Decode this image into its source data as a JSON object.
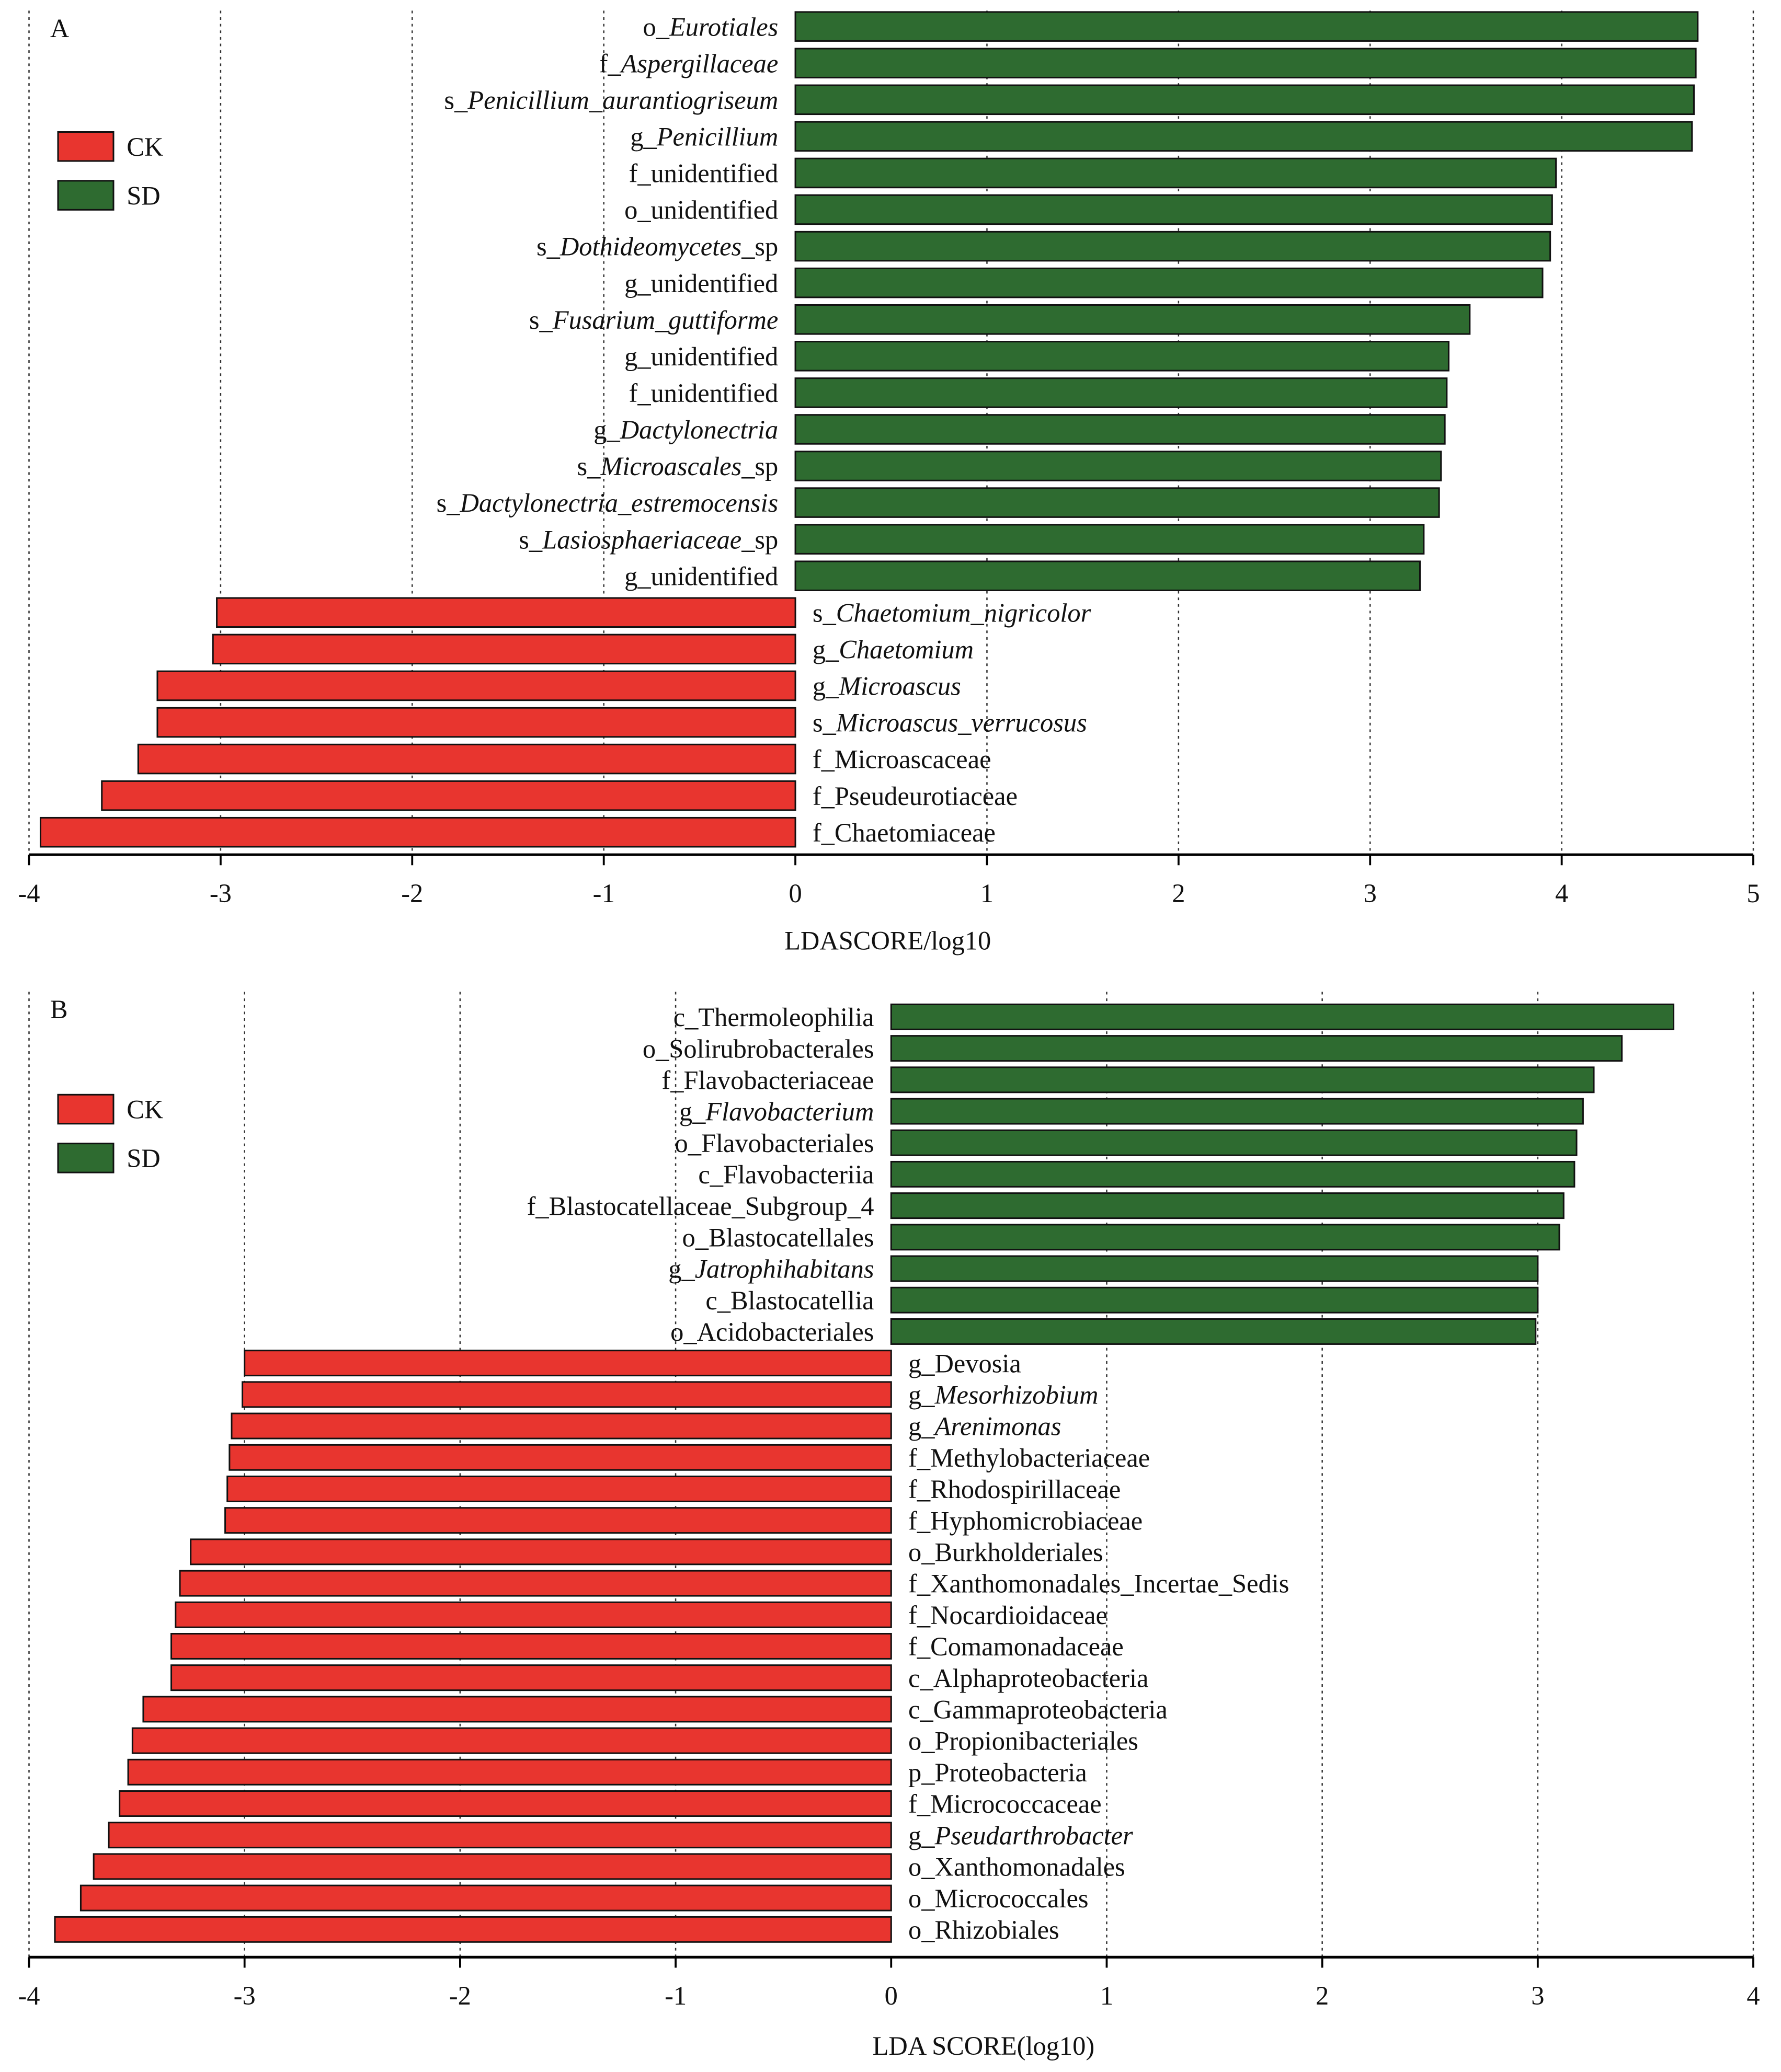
{
  "colors": {
    "CK": "#e8352f",
    "SD": "#2e6b30",
    "bar_stroke": "#111111"
  },
  "chart_data": [
    {
      "type": "bar",
      "orientation": "horizontal",
      "panel_label": "A",
      "xlabel": "LDASCORE/log10",
      "xlim": [
        -4,
        5
      ],
      "xticks": [
        "-4",
        "-3",
        "-2",
        "-1",
        "0",
        "1",
        "2",
        "3",
        "4",
        "5"
      ],
      "grid": "vertical dotted",
      "legend": {
        "placement": "top-left",
        "entries": [
          "CK",
          "SD"
        ]
      },
      "bars": [
        {
          "pre": "o_",
          "it": "Eurotiales",
          "post": "",
          "value": 4.71,
          "group": "SD"
        },
        {
          "pre": "f_",
          "it": "Aspergillaceae",
          "post": "",
          "value": 4.7,
          "group": "SD"
        },
        {
          "pre": "s_",
          "it": "Penicillium_aurantiogriseum",
          "post": "",
          "value": 4.69,
          "group": "SD"
        },
        {
          "pre": "g_",
          "it": "Penicillium",
          "post": "",
          "value": 4.68,
          "group": "SD"
        },
        {
          "pre": "f_unidentified",
          "it": "",
          "post": "",
          "value": 3.97,
          "group": "SD"
        },
        {
          "pre": "o_unidentified",
          "it": "",
          "post": "",
          "value": 3.95,
          "group": "SD"
        },
        {
          "pre": "s_",
          "it": "Dothideomycetes",
          "post": "_sp",
          "value": 3.94,
          "group": "SD"
        },
        {
          "pre": "g_unidentified",
          "it": "",
          "post": "",
          "value": 3.9,
          "group": "SD"
        },
        {
          "pre": "s_",
          "it": "Fusarium_guttiforme",
          "post": "",
          "value": 3.52,
          "group": "SD"
        },
        {
          "pre": "g_unidentified",
          "it": "",
          "post": "",
          "value": 3.41,
          "group": "SD"
        },
        {
          "pre": "f_unidentified",
          "it": "",
          "post": "",
          "value": 3.4,
          "group": "SD"
        },
        {
          "pre": "g_",
          "it": "Dactylonectria",
          "post": "",
          "value": 3.39,
          "group": "SD"
        },
        {
          "pre": "s_",
          "it": "Microascales",
          "post": "_sp",
          "value": 3.37,
          "group": "SD"
        },
        {
          "pre": "s_",
          "it": "Dactylonectria_estremocensis",
          "post": "",
          "value": 3.36,
          "group": "SD"
        },
        {
          "pre": "s_",
          "it": "Lasiosphaeriaceae",
          "post": "_sp",
          "value": 3.28,
          "group": "SD"
        },
        {
          "pre": "g_unidentified",
          "it": "",
          "post": "",
          "value": 3.26,
          "group": "SD"
        },
        {
          "pre": "s_",
          "it": "Chaetomium_nigricolor",
          "post": "",
          "value": -3.02,
          "group": "CK"
        },
        {
          "pre": "g_",
          "it": "Chaetomium",
          "post": "",
          "value": -3.04,
          "group": "CK"
        },
        {
          "pre": "g_",
          "it": "Microascus",
          "post": "",
          "value": -3.33,
          "group": "CK"
        },
        {
          "pre": "s_",
          "it": "Microascus_verrucosus",
          "post": "",
          "value": -3.33,
          "group": "CK"
        },
        {
          "pre": "f_Microascaceae",
          "it": "",
          "post": "",
          "value": -3.43,
          "group": "CK"
        },
        {
          "pre": "f_Pseudeurotiaceae",
          "it": "",
          "post": "",
          "value": -3.62,
          "group": "CK"
        },
        {
          "pre": "f_Chaetomiaceae",
          "it": "",
          "post": "",
          "value": -3.94,
          "group": "CK"
        }
      ]
    },
    {
      "type": "bar",
      "orientation": "horizontal",
      "panel_label": "B",
      "xlabel": "LDA SCORE(log10)",
      "xlim": [
        -4,
        4
      ],
      "xticks": [
        "-4",
        "-3",
        "-2",
        "-1",
        "0",
        "1",
        "2",
        "3",
        "4"
      ],
      "grid": "vertical dotted",
      "legend": {
        "placement": "top-left",
        "entries": [
          "CK",
          "SD"
        ]
      },
      "bars": [
        {
          "pre": "c_Thermoleophilia",
          "it": "",
          "post": "",
          "value": 3.63,
          "group": "SD"
        },
        {
          "pre": "o_Solirubrobacterales",
          "it": "",
          "post": "",
          "value": 3.39,
          "group": "SD"
        },
        {
          "pre": "f_Flavobacteriaceae",
          "it": "",
          "post": "",
          "value": 3.26,
          "group": "SD"
        },
        {
          "pre": "g_",
          "it": "Flavobacterium",
          "post": "",
          "value": 3.21,
          "group": "SD"
        },
        {
          "pre": "o_Flavobacteriales",
          "it": "",
          "post": "",
          "value": 3.18,
          "group": "SD"
        },
        {
          "pre": "c_Flavobacteriia",
          "it": "",
          "post": "",
          "value": 3.17,
          "group": "SD"
        },
        {
          "pre": "f_Blastocatellaceae_Subgroup_4",
          "it": "",
          "post": "",
          "value": 3.12,
          "group": "SD"
        },
        {
          "pre": "o_Blastocatellales",
          "it": "",
          "post": "",
          "value": 3.1,
          "group": "SD"
        },
        {
          "pre": "g_",
          "it": "Jatrophihabitans",
          "post": "",
          "value": 3.0,
          "group": "SD"
        },
        {
          "pre": "c_Blastocatellia",
          "it": "",
          "post": "",
          "value": 3.0,
          "group": "SD"
        },
        {
          "pre": "o_Acidobacteriales",
          "it": "",
          "post": "",
          "value": 2.99,
          "group": "SD"
        },
        {
          "pre": "g_Devosia",
          "it": "",
          "post": "",
          "value": -3.0,
          "group": "CK"
        },
        {
          "pre": "g_",
          "it": "Mesorhizobium",
          "post": "",
          "value": -3.01,
          "group": "CK"
        },
        {
          "pre": "g_",
          "it": "Arenimonas",
          "post": "",
          "value": -3.06,
          "group": "CK"
        },
        {
          "pre": "f_Methylobacteriaceae",
          "it": "",
          "post": "",
          "value": -3.07,
          "group": "CK"
        },
        {
          "pre": "f_Rhodospirillaceae",
          "it": "",
          "post": "",
          "value": -3.08,
          "group": "CK"
        },
        {
          "pre": "f_Hyphomicrobiaceae",
          "it": "",
          "post": "",
          "value": -3.09,
          "group": "CK"
        },
        {
          "pre": "o_Burkholderiales",
          "it": "",
          "post": "",
          "value": -3.25,
          "group": "CK"
        },
        {
          "pre": "f_Xanthomonadales_Incertae_Sedis",
          "it": "",
          "post": "",
          "value": -3.3,
          "group": "CK"
        },
        {
          "pre": "f_Nocardioidaceae",
          "it": "",
          "post": "",
          "value": -3.32,
          "group": "CK"
        },
        {
          "pre": "f_Comamonadaceae",
          "it": "",
          "post": "",
          "value": -3.34,
          "group": "CK"
        },
        {
          "pre": "c_Alphaproteobacteria",
          "it": "",
          "post": "",
          "value": -3.34,
          "group": "CK"
        },
        {
          "pre": "c_Gammaproteobacteria",
          "it": "",
          "post": "",
          "value": -3.47,
          "group": "CK"
        },
        {
          "pre": "o_Propionibacteriales",
          "it": "",
          "post": "",
          "value": -3.52,
          "group": "CK"
        },
        {
          "pre": "p_Proteobacteria",
          "it": "",
          "post": "",
          "value": -3.54,
          "group": "CK"
        },
        {
          "pre": "f_Micrococcaceae",
          "it": "",
          "post": "",
          "value": -3.58,
          "group": "CK"
        },
        {
          "pre": "g_",
          "it": "Pseudarthrobacter",
          "post": "",
          "value": -3.63,
          "group": "CK"
        },
        {
          "pre": "o_Xanthomonadales",
          "it": "",
          "post": "",
          "value": -3.7,
          "group": "CK"
        },
        {
          "pre": "o_Micrococcales",
          "it": "",
          "post": "",
          "value": -3.76,
          "group": "CK"
        },
        {
          "pre": "o_Rhizobiales",
          "it": "",
          "post": "",
          "value": -3.88,
          "group": "CK"
        }
      ]
    }
  ]
}
